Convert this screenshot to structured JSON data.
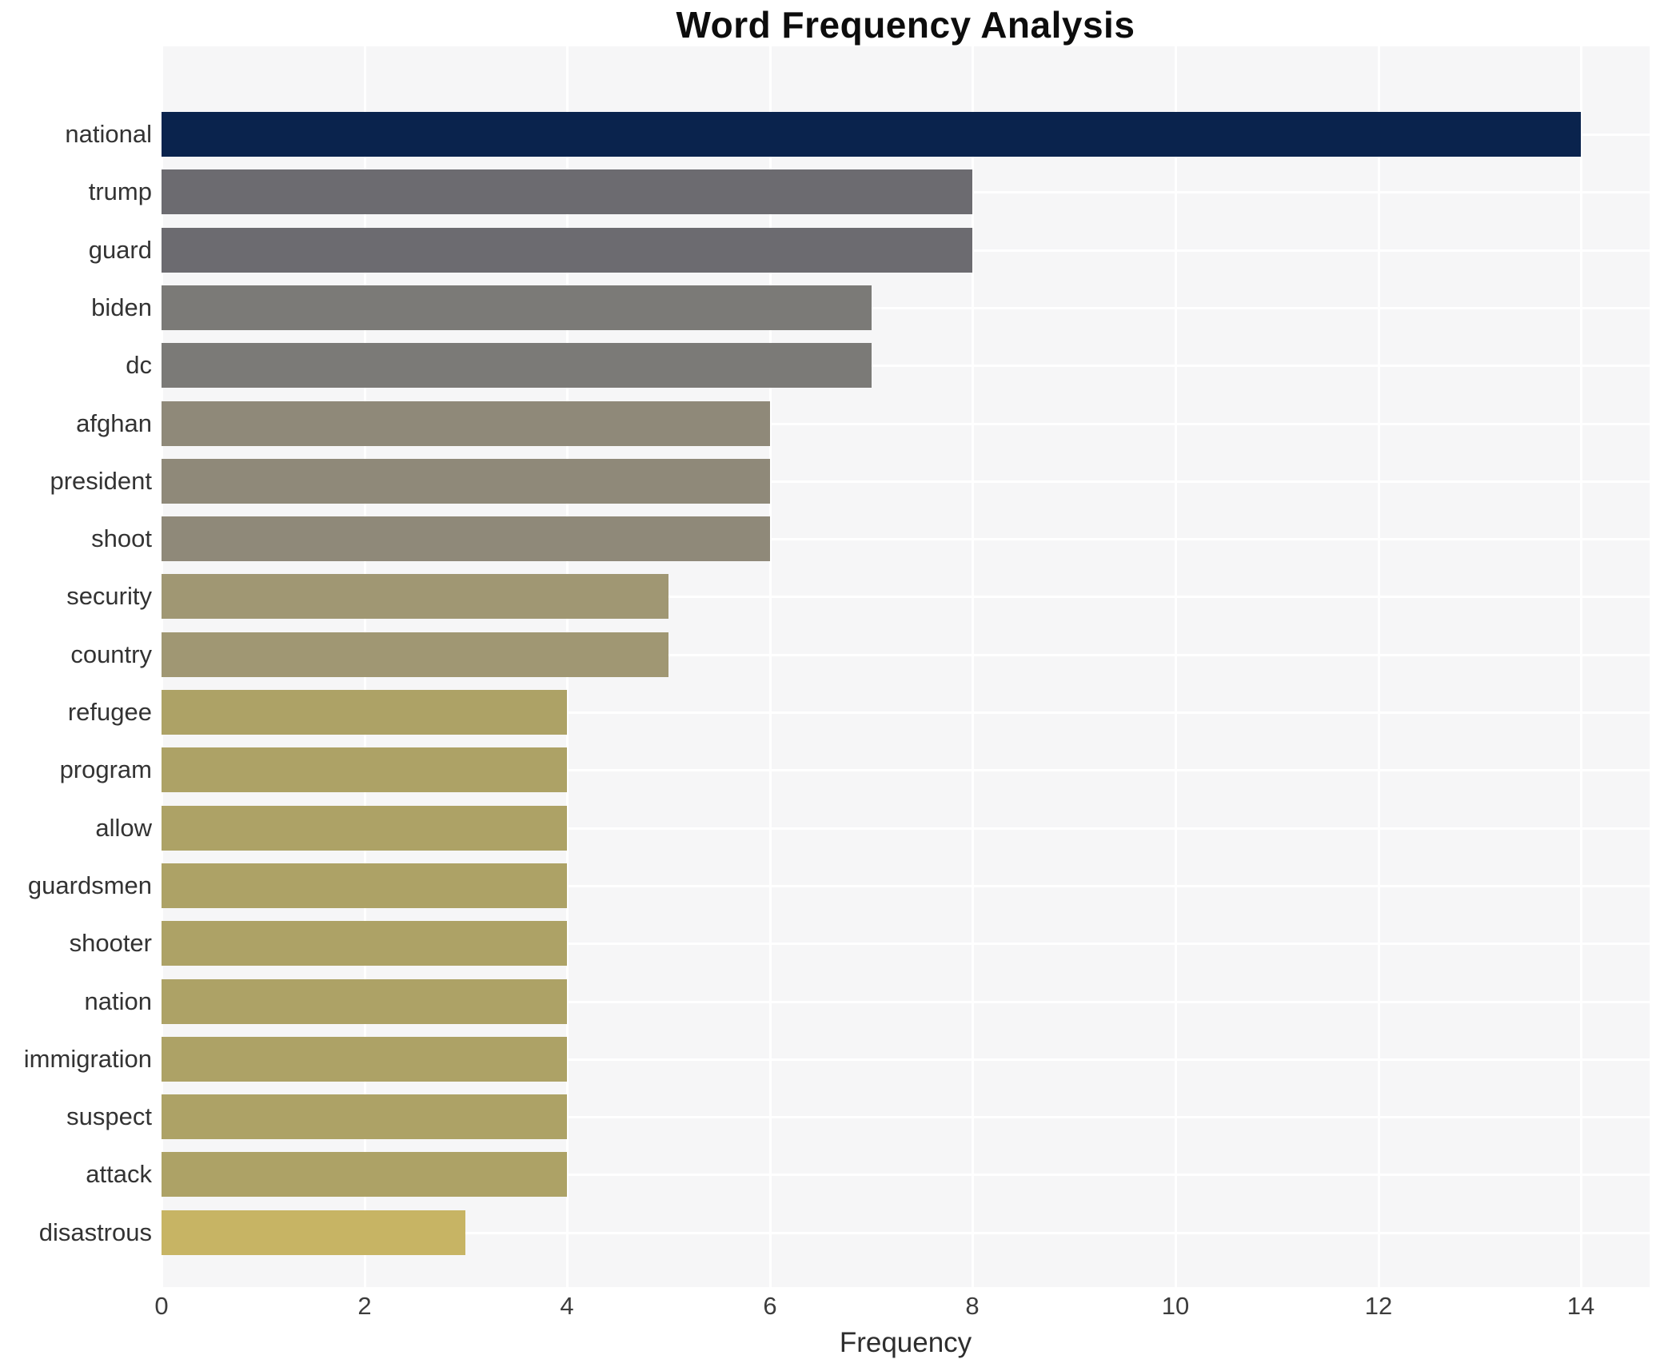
{
  "chart_data": {
    "type": "bar",
    "orientation": "horizontal",
    "title": "Word Frequency Analysis",
    "xlabel": "Frequency",
    "ylabel": "",
    "categories": [
      "national",
      "trump",
      "guard",
      "biden",
      "dc",
      "afghan",
      "president",
      "shoot",
      "security",
      "country",
      "refugee",
      "program",
      "allow",
      "guardsmen",
      "shooter",
      "nation",
      "immigration",
      "suspect",
      "attack",
      "disastrous"
    ],
    "values": [
      14,
      8,
      8,
      7,
      7,
      6,
      6,
      6,
      5,
      5,
      4,
      4,
      4,
      4,
      4,
      4,
      4,
      4,
      4,
      3
    ],
    "bar_colors": [
      "#0a234d",
      "#6c6b70",
      "#6c6b70",
      "#7b7a77",
      "#7b7a77",
      "#8f8979",
      "#8f8979",
      "#8f8979",
      "#a09773",
      "#a09773",
      "#ada266",
      "#ada266",
      "#ada266",
      "#ada266",
      "#ada266",
      "#ada266",
      "#ada266",
      "#ada266",
      "#ada266",
      "#c7b464"
    ],
    "xlim": [
      0,
      14.67
    ],
    "xticks": [
      0,
      2,
      4,
      6,
      8,
      10,
      12,
      14
    ],
    "grid": true,
    "legend": false,
    "plot_background": "#f6f6f7",
    "grid_color": "#ffffff",
    "label_color": "#333333",
    "tick_color": "#3c3c3c",
    "title_color": "#0d0d0d"
  }
}
